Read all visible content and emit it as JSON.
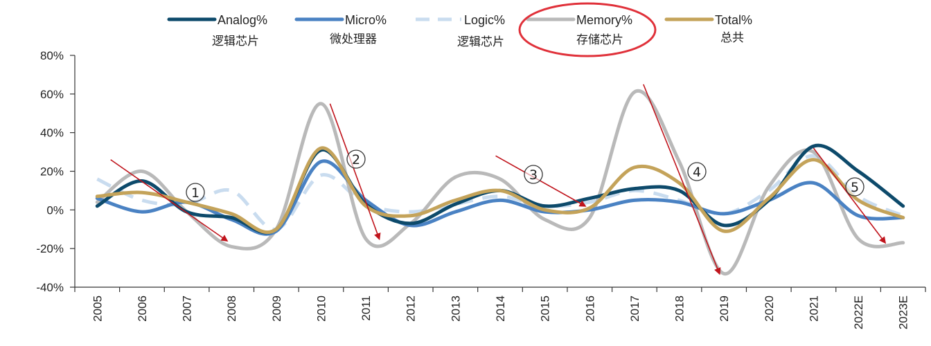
{
  "chart_data": {
    "type": "line",
    "categories": [
      "2005",
      "2006",
      "2007",
      "2008",
      "2009",
      "2010",
      "2011",
      "2012",
      "2013",
      "2014",
      "2015",
      "2016",
      "2017",
      "2018",
      "2019",
      "2020",
      "2021",
      "2022E",
      "2023E"
    ],
    "ylim": [
      -40,
      80
    ],
    "yticks": [
      80,
      60,
      40,
      20,
      0,
      -20,
      -40
    ],
    "ytick_labels": [
      "80%",
      "60%",
      "40%",
      "20%",
      "0%",
      "-20%",
      "-40%"
    ],
    "grid": false,
    "legend_position": "top",
    "series": [
      {
        "name": "Analog%",
        "sub": "逻辑芯片",
        "color": "#0d4a6b",
        "dash": "",
        "values": [
          2,
          15,
          -1,
          -4,
          -10,
          31,
          3,
          -7,
          3,
          10,
          2,
          6,
          11,
          10,
          -8,
          5,
          33,
          20,
          2
        ]
      },
      {
        "name": "Micro%",
        "sub": "微处理器",
        "color": "#4a82c3",
        "dash": "",
        "values": [
          6,
          -1,
          4,
          -5,
          -11,
          25,
          5,
          -8,
          -1,
          5,
          -1,
          0,
          5,
          4,
          -2,
          5,
          14,
          -3,
          -4
        ]
      },
      {
        "name": "Logic%",
        "sub": "逻辑芯片",
        "color": "#c9dcef",
        "dash": "22 14",
        "values": [
          16,
          5,
          3,
          10,
          -10,
          18,
          3,
          -1,
          3,
          7,
          2,
          4,
          10,
          5,
          -2,
          10,
          28,
          7,
          -3
        ]
      },
      {
        "name": "Memory%",
        "sub": "存储芯片",
        "color": "#b9b9b9",
        "dash": "",
        "values": [
          4,
          20,
          -1,
          -19,
          -10,
          55,
          -15,
          -7,
          17,
          16,
          -5,
          -4,
          61,
          25,
          -33,
          12,
          30,
          -15,
          -17
        ]
      },
      {
        "name": "Total%",
        "sub": "总共",
        "color": "#c4a35a",
        "dash": "",
        "values": [
          7,
          9,
          4,
          -2,
          -10,
          32,
          2,
          -3,
          5,
          10,
          0,
          1,
          22,
          14,
          -11,
          6,
          26,
          5,
          -4
        ]
      }
    ],
    "annotations": [
      {
        "label": "1",
        "from": [
          0.3,
          26
        ],
        "to": [
          2.9,
          -16
        ]
      },
      {
        "label": "2",
        "from": [
          5.2,
          55
        ],
        "to": [
          6.3,
          -15
        ]
      },
      {
        "label": "3",
        "from": [
          8.9,
          28
        ],
        "to": [
          10.9,
          2
        ]
      },
      {
        "label": "4",
        "from": [
          12.2,
          65
        ],
        "to": [
          13.9,
          -33
        ]
      },
      {
        "label": "5",
        "from": [
          16.0,
          32
        ],
        "to": [
          17.6,
          -17
        ]
      }
    ],
    "highlight": "Memory%"
  }
}
